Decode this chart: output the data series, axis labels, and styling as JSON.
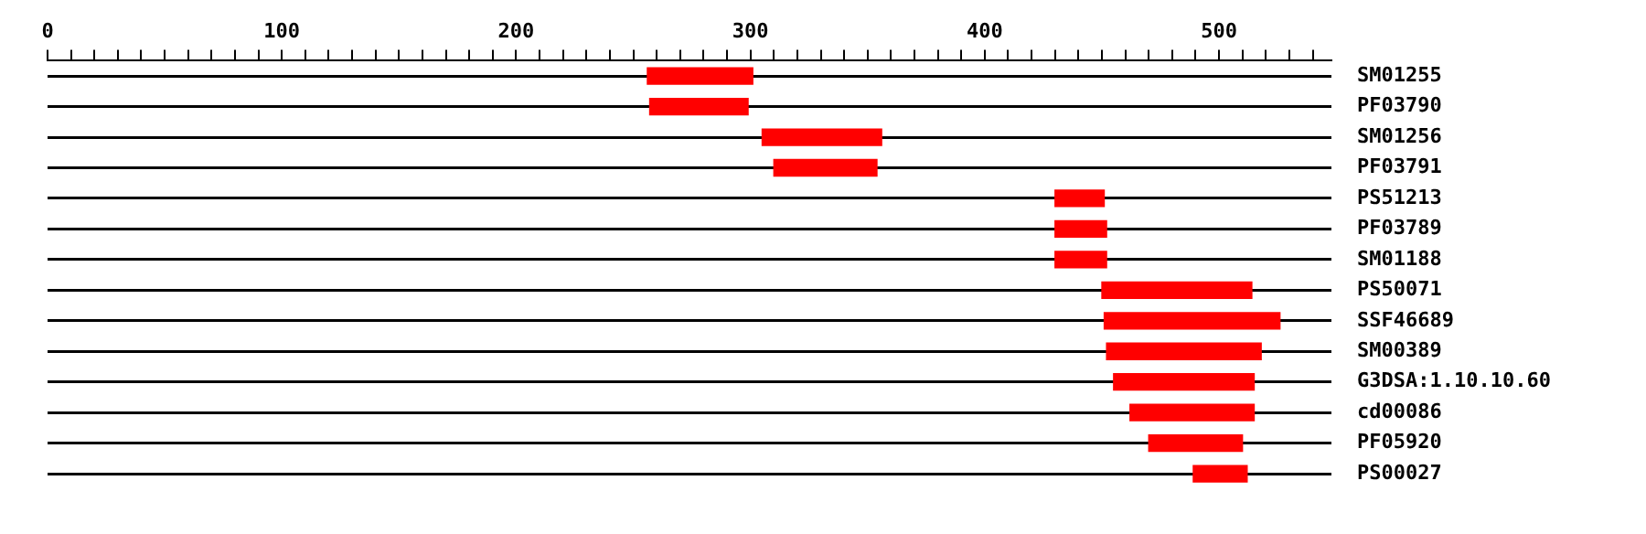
{
  "chart_data": {
    "type": "bar",
    "orientation": "horizontal",
    "categories": [
      "SM01255",
      "PF03790",
      "SM01256",
      "PF03791",
      "PS51213",
      "PF03789",
      "SM01188",
      "PS50071",
      "SSF46689",
      "SM00389",
      "G3DSA:1.10.10.60",
      "cd00086",
      "PF05920",
      "PS00027"
    ],
    "series": [
      {
        "color": "#ff0000",
        "base": [
          256,
          257,
          305,
          310,
          430,
          430,
          430,
          450,
          451,
          452,
          455,
          462,
          470,
          489
        ],
        "values": [
          45,
          42,
          51,
          44,
          21,
          22,
          22,
          64,
          75,
          66,
          60,
          53,
          40,
          23
        ]
      }
    ],
    "xlim": [
      0,
      548
    ],
    "xticks": [
      0,
      {
        "value": 10,
        "label": null
      },
      {
        "value": 20,
        "label": null
      },
      {
        "value": 30,
        "label": null
      },
      {
        "value": 40,
        "label": null
      },
      {
        "value": 50,
        "label": null
      },
      {
        "value": 60,
        "label": null
      },
      {
        "value": 70,
        "label": null
      },
      {
        "value": 80,
        "label": null
      },
      {
        "value": 90,
        "label": null
      },
      100,
      {
        "value": 110,
        "label": null
      },
      {
        "value": 120,
        "label": null
      },
      {
        "value": 130,
        "label": null
      },
      {
        "value": 140,
        "label": null
      },
      {
        "value": 150,
        "label": null
      },
      {
        "value": 160,
        "label": null
      },
      {
        "value": 170,
        "label": null
      },
      {
        "value": 180,
        "label": null
      },
      {
        "value": 190,
        "label": null
      },
      200,
      {
        "value": 210,
        "label": null
      },
      {
        "value": 220,
        "label": null
      },
      {
        "value": 230,
        "label": null
      },
      {
        "value": 240,
        "label": null
      },
      {
        "value": 250,
        "label": null
      },
      {
        "value": 260,
        "label": null
      },
      {
        "value": 270,
        "label": null
      },
      {
        "value": 280,
        "label": null
      },
      {
        "value": 290,
        "label": null
      },
      300,
      {
        "value": 310,
        "label": null
      },
      {
        "value": 320,
        "label": null
      },
      {
        "value": 330,
        "label": null
      },
      {
        "value": 340,
        "label": null
      },
      {
        "value": 350,
        "label": null
      },
      {
        "value": 360,
        "label": null
      },
      {
        "value": 370,
        "label": null
      },
      {
        "value": 380,
        "label": null
      },
      {
        "value": 390,
        "label": null
      },
      400,
      {
        "value": 410,
        "label": null
      },
      {
        "value": 420,
        "label": null
      },
      {
        "value": 430,
        "label": null
      },
      {
        "value": 440,
        "label": null
      },
      {
        "value": 450,
        "label": null
      },
      {
        "value": 460,
        "label": null
      },
      {
        "value": 470,
        "label": null
      },
      {
        "value": 480,
        "label": null
      },
      {
        "value": 490,
        "label": null
      },
      500,
      {
        "value": 510,
        "label": null
      },
      {
        "value": 520,
        "label": null
      },
      {
        "value": 530,
        "label": null
      },
      {
        "value": 540,
        "label": null
      }
    ],
    "grid": "y"
  }
}
